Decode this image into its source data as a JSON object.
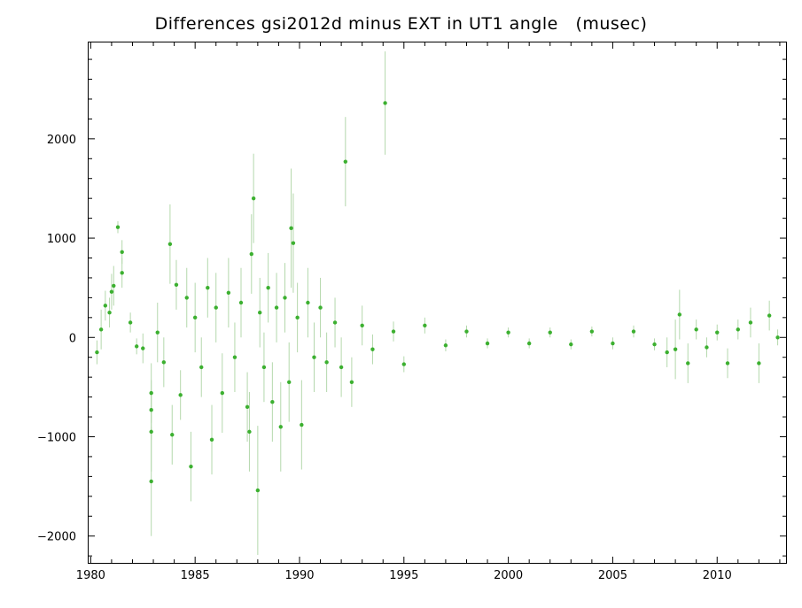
{
  "chart_data": {
    "type": "scatter",
    "title": "Differences gsi2012d minus EXT in UT1 angle   (musec)",
    "xlabel": "",
    "ylabel": "",
    "xlim": [
      1979.9,
      2013.3
    ],
    "ylim": [
      -2270,
      2970
    ],
    "x_ticks": [
      1980,
      1985,
      1990,
      1995,
      2000,
      2005,
      2010
    ],
    "x_tick_labels": [
      "1980",
      "1985",
      "1990",
      "1995",
      "2000",
      "2005",
      "2010"
    ],
    "y_ticks": [
      -2000,
      -1000,
      0,
      1000,
      2000
    ],
    "y_tick_labels": [
      "−2000",
      "−1000",
      "0",
      "1000",
      "2000"
    ],
    "grid": false,
    "legend": "none",
    "colors": {
      "point": "#3cb030",
      "errorbar": "#b4d8ac",
      "axis": "#000000"
    },
    "series": [
      {
        "points": [
          {
            "x": 1980.3,
            "y": -150,
            "err": 120
          },
          {
            "x": 1980.5,
            "y": 80,
            "err": 200
          },
          {
            "x": 1980.7,
            "y": 320,
            "err": 150
          },
          {
            "x": 1980.9,
            "y": 250,
            "err": 150
          },
          {
            "x": 1981.0,
            "y": 460,
            "err": 180
          },
          {
            "x": 1981.1,
            "y": 520,
            "err": 200
          },
          {
            "x": 1981.3,
            "y": 1110,
            "err": 60
          },
          {
            "x": 1981.5,
            "y": 860,
            "err": 120
          },
          {
            "x": 1981.5,
            "y": 650,
            "err": 150
          },
          {
            "x": 1981.9,
            "y": 150,
            "err": 100
          },
          {
            "x": 1982.2,
            "y": -90,
            "err": 80
          },
          {
            "x": 1982.5,
            "y": -110,
            "err": 150
          },
          {
            "x": 1982.9,
            "y": -560,
            "err": 300
          },
          {
            "x": 1982.9,
            "y": -730,
            "err": 300
          },
          {
            "x": 1982.9,
            "y": -950,
            "err": 400
          },
          {
            "x": 1982.9,
            "y": -1450,
            "err": 550
          },
          {
            "x": 1983.2,
            "y": 50,
            "err": 300
          },
          {
            "x": 1983.5,
            "y": -250,
            "err": 250
          },
          {
            "x": 1983.8,
            "y": 940,
            "err": 400
          },
          {
            "x": 1983.9,
            "y": -980,
            "err": 300
          },
          {
            "x": 1984.1,
            "y": 530,
            "err": 250
          },
          {
            "x": 1984.3,
            "y": -580,
            "err": 250
          },
          {
            "x": 1984.6,
            "y": 400,
            "err": 300
          },
          {
            "x": 1984.8,
            "y": -1300,
            "err": 350
          },
          {
            "x": 1985.0,
            "y": 200,
            "err": 350
          },
          {
            "x": 1985.3,
            "y": -300,
            "err": 300
          },
          {
            "x": 1985.6,
            "y": 500,
            "err": 300
          },
          {
            "x": 1985.8,
            "y": -1030,
            "err": 350
          },
          {
            "x": 1986.0,
            "y": 300,
            "err": 350
          },
          {
            "x": 1986.3,
            "y": -560,
            "err": 400
          },
          {
            "x": 1986.6,
            "y": 450,
            "err": 350
          },
          {
            "x": 1986.9,
            "y": -200,
            "err": 350
          },
          {
            "x": 1987.2,
            "y": 350,
            "err": 350
          },
          {
            "x": 1987.5,
            "y": -700,
            "err": 350
          },
          {
            "x": 1987.6,
            "y": -950,
            "err": 400
          },
          {
            "x": 1987.7,
            "y": 840,
            "err": 400
          },
          {
            "x": 1987.8,
            "y": 1400,
            "err": 450
          },
          {
            "x": 1988.0,
            "y": -1540,
            "err": 650
          },
          {
            "x": 1988.1,
            "y": 250,
            "err": 350
          },
          {
            "x": 1988.3,
            "y": -300,
            "err": 350
          },
          {
            "x": 1988.5,
            "y": 500,
            "err": 350
          },
          {
            "x": 1988.7,
            "y": -650,
            "err": 400
          },
          {
            "x": 1988.9,
            "y": 300,
            "err": 350
          },
          {
            "x": 1989.1,
            "y": -900,
            "err": 450
          },
          {
            "x": 1989.3,
            "y": 400,
            "err": 350
          },
          {
            "x": 1989.5,
            "y": -450,
            "err": 400
          },
          {
            "x": 1989.6,
            "y": 1100,
            "err": 600
          },
          {
            "x": 1989.7,
            "y": 950,
            "err": 500
          },
          {
            "x": 1989.9,
            "y": 200,
            "err": 350
          },
          {
            "x": 1990.1,
            "y": -880,
            "err": 450
          },
          {
            "x": 1990.4,
            "y": 350,
            "err": 350
          },
          {
            "x": 1990.7,
            "y": -200,
            "err": 350
          },
          {
            "x": 1991.0,
            "y": 300,
            "err": 300
          },
          {
            "x": 1991.3,
            "y": -250,
            "err": 300
          },
          {
            "x": 1991.7,
            "y": 150,
            "err": 250
          },
          {
            "x": 1992.0,
            "y": -300,
            "err": 300
          },
          {
            "x": 1992.2,
            "y": 1770,
            "err": 450
          },
          {
            "x": 1992.5,
            "y": -450,
            "err": 250
          },
          {
            "x": 1993.0,
            "y": 120,
            "err": 200
          },
          {
            "x": 1993.5,
            "y": -120,
            "err": 150
          },
          {
            "x": 1994.1,
            "y": 2360,
            "err": 520
          },
          {
            "x": 1994.5,
            "y": 60,
            "err": 100
          },
          {
            "x": 1995.0,
            "y": -270,
            "err": 80
          },
          {
            "x": 1996.0,
            "y": 120,
            "err": 80
          },
          {
            "x": 1997.0,
            "y": -80,
            "err": 60
          },
          {
            "x": 1998.0,
            "y": 60,
            "err": 60
          },
          {
            "x": 1999.0,
            "y": -60,
            "err": 50
          },
          {
            "x": 2000.0,
            "y": 50,
            "err": 50
          },
          {
            "x": 2001.0,
            "y": -60,
            "err": 50
          },
          {
            "x": 2002.0,
            "y": 50,
            "err": 50
          },
          {
            "x": 2003.0,
            "y": -70,
            "err": 50
          },
          {
            "x": 2004.0,
            "y": 60,
            "err": 50
          },
          {
            "x": 2005.0,
            "y": -60,
            "err": 60
          },
          {
            "x": 2006.0,
            "y": 60,
            "err": 60
          },
          {
            "x": 2007.0,
            "y": -70,
            "err": 60
          },
          {
            "x": 2007.6,
            "y": -150,
            "err": 150
          },
          {
            "x": 2008.0,
            "y": -120,
            "err": 300
          },
          {
            "x": 2008.2,
            "y": 230,
            "err": 250
          },
          {
            "x": 2008.6,
            "y": -260,
            "err": 200
          },
          {
            "x": 2009.0,
            "y": 80,
            "err": 100
          },
          {
            "x": 2009.5,
            "y": -100,
            "err": 100
          },
          {
            "x": 2010.0,
            "y": 50,
            "err": 80
          },
          {
            "x": 2010.5,
            "y": -260,
            "err": 150
          },
          {
            "x": 2011.0,
            "y": 80,
            "err": 100
          },
          {
            "x": 2011.6,
            "y": 150,
            "err": 150
          },
          {
            "x": 2012.0,
            "y": -260,
            "err": 200
          },
          {
            "x": 2012.5,
            "y": 220,
            "err": 150
          },
          {
            "x": 2012.9,
            "y": 0,
            "err": 80
          }
        ]
      }
    ]
  }
}
